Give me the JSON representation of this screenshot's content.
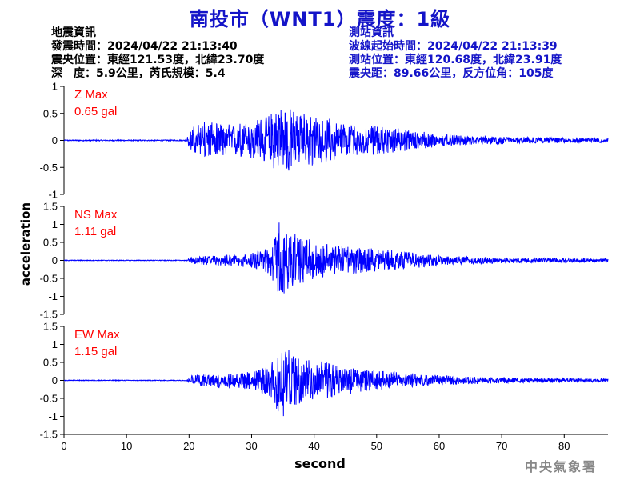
{
  "title": "南投市（WNT1）震度：1級",
  "quake_info": {
    "heading": "地震資訊",
    "time": "發震時間：2024/04/22 21:13:40",
    "epicenter": "震央位置：東經121.53度，北緯23.70度",
    "depth_mag": "深　度：5.9公里，芮氏規模：5.4"
  },
  "station_info": {
    "heading": "測站資訊",
    "wave_start": "波線起始時間：2024/04/22 21:13:39",
    "position": "測站位置：東經120.68度，北緯23.91度",
    "distance": "震央距：89.66公里，反方位角：105度"
  },
  "watermark": "中央氣象署",
  "colors": {
    "title": "#1414c8",
    "trace": "#0000ff",
    "max_label": "#ff0000",
    "axis": "#000000"
  },
  "chart_data": {
    "type": "line",
    "xlabel": "second",
    "ylabel": "acceleration",
    "xlim": [
      0,
      87
    ],
    "xticks": [
      0,
      10,
      20,
      30,
      40,
      50,
      60,
      70,
      80
    ],
    "series": [
      {
        "name": "Z",
        "max_label": "Z Max",
        "max_value": "0.65 gal",
        "ylim": [
          -1,
          1
        ],
        "yticks": [
          1,
          0.5,
          0,
          -0.5,
          -1
        ],
        "envelope": [
          [
            0,
            0.01
          ],
          [
            19.5,
            0.01
          ],
          [
            20.5,
            0.25
          ],
          [
            22,
            0.35
          ],
          [
            26,
            0.3
          ],
          [
            29,
            0.35
          ],
          [
            31,
            0.4
          ],
          [
            33,
            0.5
          ],
          [
            35.5,
            0.65
          ],
          [
            37,
            0.55
          ],
          [
            39,
            0.5
          ],
          [
            41,
            0.45
          ],
          [
            44,
            0.35
          ],
          [
            48,
            0.28
          ],
          [
            52,
            0.25
          ],
          [
            55,
            0.2
          ],
          [
            60,
            0.12
          ],
          [
            65,
            0.08
          ],
          [
            70,
            0.07
          ],
          [
            80,
            0.05
          ],
          [
            87,
            0.04
          ]
        ]
      },
      {
        "name": "NS",
        "max_label": "NS Max",
        "max_value": "1.11 gal",
        "ylim": [
          -1.5,
          1.5
        ],
        "yticks": [
          1.5,
          1,
          0.5,
          0,
          -0.5,
          -1,
          -1.5
        ],
        "envelope": [
          [
            0,
            0.01
          ],
          [
            19.5,
            0.01
          ],
          [
            20.5,
            0.1
          ],
          [
            25,
            0.15
          ],
          [
            30,
            0.2
          ],
          [
            33,
            0.4
          ],
          [
            34.5,
            1.11
          ],
          [
            36,
            0.8
          ],
          [
            38,
            0.65
          ],
          [
            41,
            0.5
          ],
          [
            45,
            0.4
          ],
          [
            49,
            0.35
          ],
          [
            53,
            0.28
          ],
          [
            57,
            0.2
          ],
          [
            62,
            0.12
          ],
          [
            70,
            0.08
          ],
          [
            80,
            0.06
          ],
          [
            87,
            0.05
          ]
        ]
      },
      {
        "name": "EW",
        "max_label": "EW Max",
        "max_value": "1.15 gal",
        "ylim": [
          -1.5,
          1.5
        ],
        "yticks": [
          1.5,
          1,
          0.5,
          0,
          -0.5,
          -1,
          -1.5
        ],
        "envelope": [
          [
            0,
            0.01
          ],
          [
            19.5,
            0.01
          ],
          [
            20.5,
            0.15
          ],
          [
            24,
            0.2
          ],
          [
            30,
            0.25
          ],
          [
            33,
            0.45
          ],
          [
            35,
            1.15
          ],
          [
            37,
            0.7
          ],
          [
            39,
            0.6
          ],
          [
            42,
            0.5
          ],
          [
            45,
            0.4
          ],
          [
            48,
            0.3
          ],
          [
            52,
            0.25
          ],
          [
            57,
            0.18
          ],
          [
            62,
            0.12
          ],
          [
            70,
            0.08
          ],
          [
            80,
            0.06
          ],
          [
            87,
            0.05
          ]
        ]
      }
    ]
  }
}
